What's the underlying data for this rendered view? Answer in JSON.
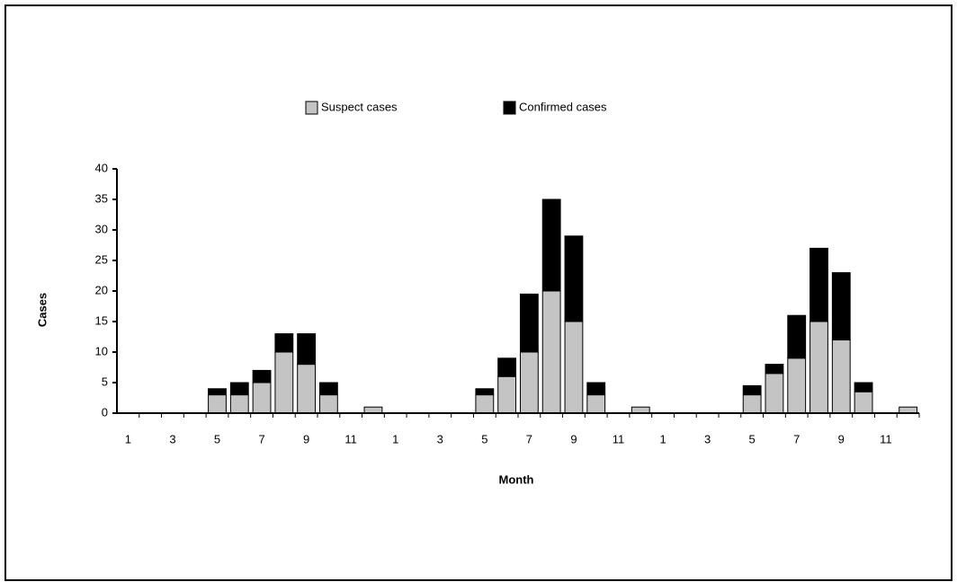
{
  "chart_data": {
    "type": "stacked_bar",
    "categories": [
      "1",
      null,
      "3",
      null,
      "5",
      null,
      "7",
      null,
      "9",
      null,
      "11",
      null,
      "1",
      null,
      "3",
      null,
      "5",
      null,
      "7",
      null,
      "9",
      null,
      "11",
      null,
      "1",
      null,
      "3",
      null,
      "5",
      null,
      "7",
      null,
      "9",
      null,
      "11",
      null
    ],
    "series": [
      {
        "name": "Suspect cases",
        "color": "#c4c4c4",
        "values": [
          0,
          0,
          0,
          0,
          3,
          3,
          5,
          10,
          8,
          3,
          0,
          1,
          0,
          0,
          0,
          0,
          3,
          6,
          10,
          20,
          15,
          3,
          0,
          1,
          0,
          0,
          0,
          0,
          3,
          6.5,
          9,
          15,
          12,
          3.5,
          0,
          1
        ]
      },
      {
        "name": "Confirmed cases",
        "color": "#000000",
        "values": [
          0,
          0,
          0,
          0,
          1,
          2,
          2,
          3,
          5,
          2,
          0,
          0,
          0,
          0,
          0,
          0,
          1,
          3,
          9.5,
          15,
          14,
          2,
          0,
          0,
          0,
          0,
          0,
          0,
          1.5,
          1.5,
          7,
          12,
          11,
          1.5,
          0,
          0
        ]
      }
    ],
    "y_label": "Cases",
    "x_label": "Month",
    "ylim": [
      0,
      40
    ],
    "yticks": [
      0,
      5,
      10,
      15,
      20,
      25,
      30,
      35,
      40
    ]
  }
}
